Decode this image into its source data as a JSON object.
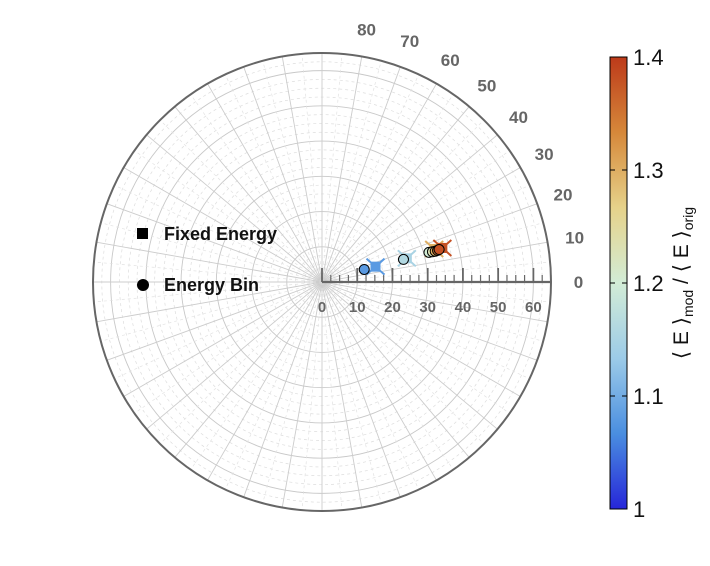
{
  "chart_data": {
    "type": "scatter",
    "subtype": "polar",
    "angle_ticks": [
      "0",
      "10",
      "20",
      "30",
      "40",
      "50",
      "60",
      "70",
      "80"
    ],
    "angle_range_deg": [
      0,
      90
    ],
    "radial_ticks": [
      "0",
      "10",
      "20",
      "30",
      "40",
      "50",
      "60"
    ],
    "radial_range": [
      0,
      65
    ],
    "grid": true,
    "legend": {
      "position": "left",
      "entries": [
        {
          "label": "Fixed Energy",
          "marker": "square"
        },
        {
          "label": "Energy Bin",
          "marker": "circle"
        }
      ]
    },
    "colorbar": {
      "title_parts": {
        "pre": "⟨ E ⟩",
        "sub1": "mod",
        "mid": " / ⟨ E ⟩",
        "sub2": "orig"
      },
      "ticks": [
        "1",
        "1.1",
        "1.2",
        "1.3",
        "1.4"
      ],
      "range": [
        1.0,
        1.4
      ],
      "colormap": [
        "#2626d9",
        "#4a8ee0",
        "#9ccbe8",
        "#d2ecd6",
        "#e6d28a",
        "#d6883a",
        "#bd3a1a"
      ]
    },
    "series": [
      {
        "name": "Fixed Energy",
        "marker": "square",
        "points": [
          {
            "angle": 16.0,
            "r": 15.8,
            "value": 1.08
          },
          {
            "angle": 15.6,
            "r": 25.0,
            "value": 1.15
          },
          {
            "angle": 16.4,
            "r": 33.2,
            "value": 1.3
          },
          {
            "angle": 15.8,
            "r": 35.5,
            "value": 1.38
          }
        ]
      },
      {
        "name": "Energy Bin",
        "marker": "circle",
        "points": [
          {
            "angle": 16.5,
            "r": 12.5,
            "value": 1.08
          },
          {
            "angle": 15.5,
            "r": 24.0,
            "value": 1.16
          },
          {
            "angle": 15.5,
            "r": 31.5,
            "value": 1.2
          },
          {
            "angle": 15.3,
            "r": 32.5,
            "value": 1.23
          },
          {
            "angle": 15.2,
            "r": 33.3,
            "value": 1.3
          },
          {
            "angle": 15.3,
            "r": 34.0,
            "value": 1.35
          },
          {
            "angle": 15.5,
            "r": 34.5,
            "value": 1.38
          }
        ]
      }
    ]
  }
}
